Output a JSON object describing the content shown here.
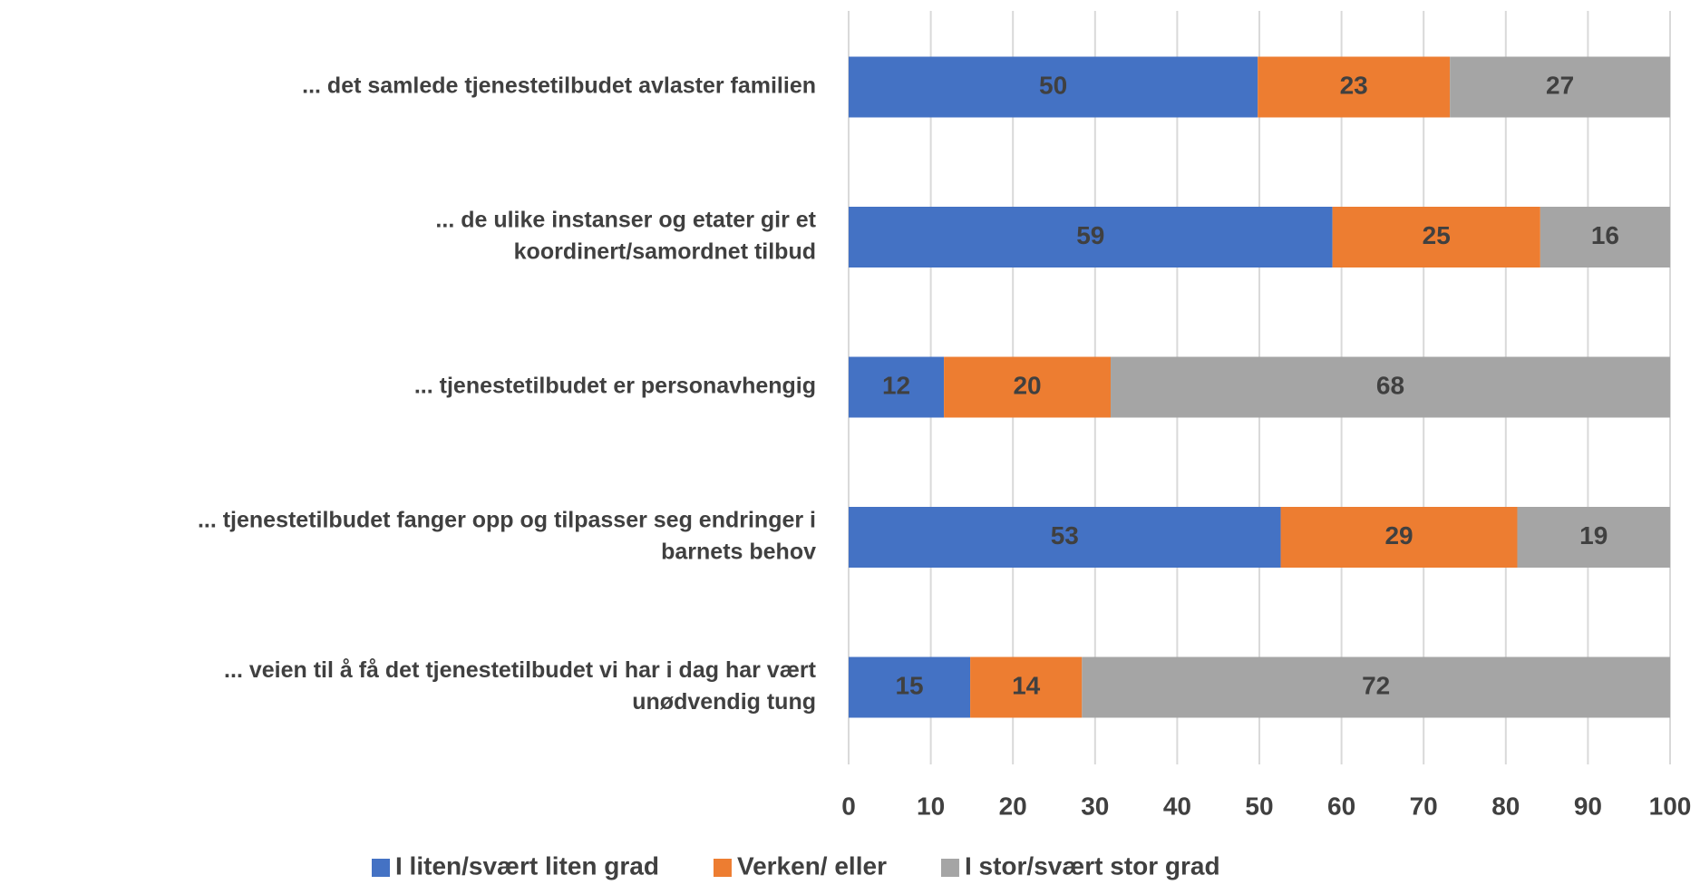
{
  "chart_data": {
    "type": "stacked-bar-horizontal",
    "categories": [
      [
        "... det samlede tjenestetilbudet avlaster familien"
      ],
      [
        "... de ulike instanser og etater gir et",
        "koordinert/samordnet tilbud"
      ],
      [
        "... tjenestetilbudet er personavhengig"
      ],
      [
        "... tjenestetilbudet fanger opp og tilpasser seg endringer i",
        "barnets behov"
      ],
      [
        "... veien til å få det tjenestetilbudet vi har i dag har vært",
        "unødvendig tung"
      ]
    ],
    "series": [
      {
        "name": "I liten/svært liten grad",
        "color": "#4472c4",
        "values": [
          49.8,
          58.9,
          11.6,
          52.6,
          14.8
        ],
        "value_labels": [
          "50",
          "59",
          "12",
          "53",
          "15"
        ]
      },
      {
        "name": "Verken/ eller",
        "color": "#ed7d31",
        "values": [
          23.4,
          25.3,
          20.3,
          28.8,
          13.6
        ],
        "value_labels": [
          "23",
          "25",
          "20",
          "29",
          "14"
        ]
      },
      {
        "name": "I stor/svært stor grad",
        "color": "#a5a5a5",
        "values": [
          26.8,
          15.8,
          68.1,
          18.6,
          71.6
        ],
        "value_labels": [
          "27",
          "16",
          "68",
          "19",
          "72"
        ]
      }
    ],
    "xlim": [
      0,
      100
    ],
    "xticks": [
      0,
      10,
      20,
      30,
      40,
      50,
      60,
      70,
      80,
      90,
      100
    ],
    "grid": true,
    "legend": "bottom"
  }
}
